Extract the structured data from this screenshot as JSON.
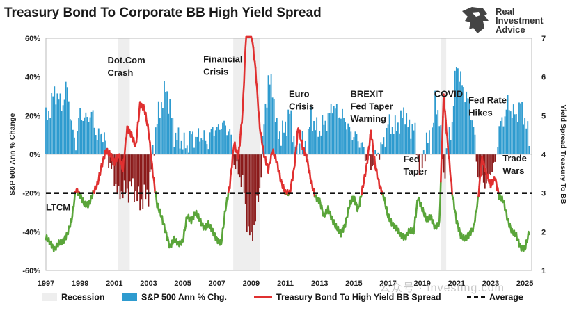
{
  "title": "Treasury Bond To Corporate BB High Yield Spread",
  "logo": {
    "line1": "Real",
    "line2": "Investment",
    "line3": "Advice"
  },
  "watermark": "公众号 · Investing.com",
  "colors": {
    "recession": "#eeeeee",
    "sp500_positive": "#2e9bcf",
    "sp500_negative": "#8b1a1a",
    "spread_above_avg": "#e03030",
    "spread_below_avg": "#5aa53a",
    "average": "#111111"
  },
  "chart_data": {
    "type": "bar+line",
    "title": "Treasury Bond To Corporate BB High Yield Spread",
    "y_left_label": "S&P 500 Ann % Change",
    "y_left_lim": [
      -60,
      60
    ],
    "y_left_ticks": [
      "-60%",
      "-40%",
      "-20%",
      "0%",
      "20%",
      "40%",
      "60%"
    ],
    "y_right_label": "Yield Spread Treasury To BB",
    "y_right_lim": [
      1,
      7
    ],
    "y_right_ticks": [
      "1",
      "2",
      "3",
      "4",
      "5",
      "6",
      "7"
    ],
    "x_lim": [
      1997,
      2025.4
    ],
    "x_tick_labels": [
      "1997",
      "1999",
      "2001",
      "2003",
      "2005",
      "2007",
      "2009",
      "2011",
      "2013",
      "2015",
      "2017",
      "2019",
      "2021",
      "2023",
      "2025"
    ],
    "average": 3.0,
    "recessions": [
      [
        2001.2,
        2001.9
      ],
      [
        2007.95,
        2009.5
      ],
      [
        2020.1,
        2020.4
      ]
    ],
    "sp500_annual_change": [
      [
        1997.0,
        18
      ],
      [
        1997.25,
        24
      ],
      [
        1997.5,
        33
      ],
      [
        1997.75,
        28
      ],
      [
        1998.0,
        26
      ],
      [
        1998.25,
        36
      ],
      [
        1998.5,
        14
      ],
      [
        1998.75,
        6
      ],
      [
        1999.0,
        22
      ],
      [
        1999.25,
        18
      ],
      [
        1999.5,
        20
      ],
      [
        1999.75,
        20
      ],
      [
        2000.0,
        8
      ],
      [
        2000.25,
        12
      ],
      [
        2000.5,
        6
      ],
      [
        2000.75,
        -6
      ],
      [
        2001.0,
        -12
      ],
      [
        2001.25,
        -22
      ],
      [
        2001.5,
        -18
      ],
      [
        2001.75,
        -20
      ],
      [
        2002.0,
        -16
      ],
      [
        2002.25,
        -20
      ],
      [
        2002.5,
        -25
      ],
      [
        2002.75,
        -22
      ],
      [
        2003.0,
        -20
      ],
      [
        2003.25,
        0
      ],
      [
        2003.5,
        18
      ],
      [
        2003.75,
        26
      ],
      [
        2004.0,
        34
      ],
      [
        2004.25,
        24
      ],
      [
        2004.5,
        10
      ],
      [
        2004.75,
        8
      ],
      [
        2005.0,
        6
      ],
      [
        2005.25,
        4
      ],
      [
        2005.5,
        10
      ],
      [
        2005.75,
        8
      ],
      [
        2006.0,
        10
      ],
      [
        2006.25,
        8
      ],
      [
        2006.5,
        6
      ],
      [
        2006.75,
        14
      ],
      [
        2007.0,
        12
      ],
      [
        2007.25,
        16
      ],
      [
        2007.5,
        14
      ],
      [
        2007.75,
        12
      ],
      [
        2008.0,
        -4
      ],
      [
        2008.25,
        -10
      ],
      [
        2008.5,
        -14
      ],
      [
        2008.75,
        -35
      ],
      [
        2009.0,
        -45
      ],
      [
        2009.25,
        -32
      ],
      [
        2009.5,
        -18
      ],
      [
        2009.75,
        16
      ],
      [
        2010.0,
        38
      ],
      [
        2010.25,
        35
      ],
      [
        2010.5,
        12
      ],
      [
        2010.75,
        10
      ],
      [
        2011.0,
        14
      ],
      [
        2011.25,
        22
      ],
      [
        2011.5,
        8
      ],
      [
        2011.75,
        4
      ],
      [
        2012.0,
        6
      ],
      [
        2012.25,
        4
      ],
      [
        2012.5,
        20
      ],
      [
        2012.75,
        14
      ],
      [
        2013.0,
        12
      ],
      [
        2013.25,
        16
      ],
      [
        2013.5,
        18
      ],
      [
        2013.75,
        26
      ],
      [
        2014.0,
        22
      ],
      [
        2014.25,
        20
      ],
      [
        2014.5,
        18
      ],
      [
        2014.75,
        12
      ],
      [
        2015.0,
        10
      ],
      [
        2015.25,
        8
      ],
      [
        2015.5,
        4
      ],
      [
        2015.75,
        -2
      ],
      [
        2016.0,
        -6
      ],
      [
        2016.25,
        -2
      ],
      [
        2016.5,
        2
      ],
      [
        2016.75,
        6
      ],
      [
        2017.0,
        16
      ],
      [
        2017.25,
        14
      ],
      [
        2017.5,
        14
      ],
      [
        2017.75,
        18
      ],
      [
        2018.0,
        22
      ],
      [
        2018.25,
        12
      ],
      [
        2018.5,
        16
      ],
      [
        2018.75,
        -4
      ],
      [
        2019.0,
        -6
      ],
      [
        2019.25,
        8
      ],
      [
        2019.5,
        6
      ],
      [
        2019.75,
        26
      ],
      [
        2020.0,
        20
      ],
      [
        2020.25,
        -12
      ],
      [
        2020.5,
        6
      ],
      [
        2020.75,
        16
      ],
      [
        2021.0,
        48
      ],
      [
        2021.25,
        38
      ],
      [
        2021.5,
        32
      ],
      [
        2021.75,
        26
      ],
      [
        2022.0,
        14
      ],
      [
        2022.25,
        -10
      ],
      [
        2022.5,
        -12
      ],
      [
        2022.75,
        -16
      ],
      [
        2023.0,
        -8
      ],
      [
        2023.25,
        -6
      ],
      [
        2023.5,
        14
      ],
      [
        2023.75,
        18
      ],
      [
        2024.0,
        26
      ],
      [
        2024.25,
        22
      ],
      [
        2024.5,
        20
      ],
      [
        2024.75,
        26
      ],
      [
        2025.0,
        18
      ],
      [
        2025.25,
        8
      ]
    ],
    "yield_spread": [
      [
        1997.0,
        1.85
      ],
      [
        1997.25,
        1.72
      ],
      [
        1997.5,
        1.55
      ],
      [
        1997.75,
        1.7
      ],
      [
        1998.0,
        1.75
      ],
      [
        1998.25,
        1.95
      ],
      [
        1998.5,
        2.3
      ],
      [
        1998.75,
        3.1
      ],
      [
        1999.0,
        2.95
      ],
      [
        1999.25,
        2.7
      ],
      [
        1999.5,
        2.7
      ],
      [
        1999.75,
        3.0
      ],
      [
        2000.0,
        3.2
      ],
      [
        2000.25,
        3.7
      ],
      [
        2000.5,
        4.1
      ],
      [
        2000.75,
        4.0
      ],
      [
        2001.0,
        3.8
      ],
      [
        2001.25,
        4.0
      ],
      [
        2001.5,
        3.6
      ],
      [
        2001.75,
        4.7
      ],
      [
        2002.0,
        4.5
      ],
      [
        2002.25,
        4.2
      ],
      [
        2002.5,
        5.3
      ],
      [
        2002.75,
        5.2
      ],
      [
        2003.0,
        4.6
      ],
      [
        2003.25,
        3.5
      ],
      [
        2003.5,
        2.7
      ],
      [
        2003.75,
        2.4
      ],
      [
        2004.0,
        2.0
      ],
      [
        2004.25,
        1.6
      ],
      [
        2004.5,
        1.8
      ],
      [
        2004.75,
        1.7
      ],
      [
        2005.0,
        1.75
      ],
      [
        2005.25,
        2.4
      ],
      [
        2005.5,
        2.3
      ],
      [
        2005.75,
        2.5
      ],
      [
        2006.0,
        2.3
      ],
      [
        2006.25,
        2.1
      ],
      [
        2006.5,
        2.2
      ],
      [
        2006.75,
        2.0
      ],
      [
        2007.0,
        1.8
      ],
      [
        2007.25,
        1.7
      ],
      [
        2007.5,
        2.6
      ],
      [
        2007.75,
        3.2
      ],
      [
        2008.0,
        4.3
      ],
      [
        2008.25,
        3.9
      ],
      [
        2008.5,
        5.1
      ],
      [
        2008.75,
        7.6
      ],
      [
        2009.0,
        7.2
      ],
      [
        2009.25,
        6.2
      ],
      [
        2009.5,
        4.7
      ],
      [
        2009.75,
        4.0
      ],
      [
        2010.0,
        3.6
      ],
      [
        2010.25,
        4.1
      ],
      [
        2010.5,
        3.8
      ],
      [
        2010.75,
        3.3
      ],
      [
        2011.0,
        3.0
      ],
      [
        2011.25,
        3.0
      ],
      [
        2011.5,
        3.6
      ],
      [
        2011.75,
        4.7
      ],
      [
        2012.0,
        4.2
      ],
      [
        2012.25,
        3.9
      ],
      [
        2012.5,
        3.3
      ],
      [
        2012.75,
        2.9
      ],
      [
        2013.0,
        2.8
      ],
      [
        2013.25,
        2.4
      ],
      [
        2013.5,
        2.6
      ],
      [
        2013.75,
        2.3
      ],
      [
        2014.0,
        2.1
      ],
      [
        2014.25,
        1.95
      ],
      [
        2014.5,
        2.2
      ],
      [
        2014.75,
        2.7
      ],
      [
        2015.0,
        2.9
      ],
      [
        2015.25,
        2.55
      ],
      [
        2015.5,
        3.1
      ],
      [
        2015.75,
        3.7
      ],
      [
        2016.0,
        4.6
      ],
      [
        2016.25,
        3.7
      ],
      [
        2016.5,
        3.2
      ],
      [
        2016.75,
        2.9
      ],
      [
        2017.0,
        2.4
      ],
      [
        2017.25,
        2.2
      ],
      [
        2017.5,
        2.1
      ],
      [
        2017.75,
        1.9
      ],
      [
        2018.0,
        1.85
      ],
      [
        2018.25,
        2.05
      ],
      [
        2018.5,
        2.0
      ],
      [
        2018.75,
        2.9
      ],
      [
        2019.0,
        2.6
      ],
      [
        2019.25,
        2.3
      ],
      [
        2019.5,
        2.4
      ],
      [
        2019.75,
        2.1
      ],
      [
        2020.0,
        2.2
      ],
      [
        2020.25,
        5.5
      ],
      [
        2020.5,
        4.2
      ],
      [
        2020.75,
        3.0
      ],
      [
        2021.0,
        2.3
      ],
      [
        2021.25,
        1.9
      ],
      [
        2021.5,
        1.8
      ],
      [
        2021.75,
        1.95
      ],
      [
        2022.0,
        2.1
      ],
      [
        2022.25,
        2.8
      ],
      [
        2022.5,
        3.9
      ],
      [
        2022.75,
        3.5
      ],
      [
        2023.0,
        3.2
      ],
      [
        2023.25,
        3.4
      ],
      [
        2023.5,
        2.9
      ],
      [
        2023.75,
        2.8
      ],
      [
        2024.0,
        2.3
      ],
      [
        2024.25,
        2.0
      ],
      [
        2024.5,
        1.9
      ],
      [
        2024.75,
        1.6
      ],
      [
        2025.0,
        1.55
      ],
      [
        2025.25,
        2.0
      ]
    ],
    "annotations": [
      {
        "text": "LTCM",
        "x": 1997.0,
        "y": 2.55
      },
      {
        "text": "Dot.Com",
        "x": 2000.6,
        "y": 6.35
      },
      {
        "text": "Crash",
        "x": 2000.6,
        "y": 6.03
      },
      {
        "text": "Financial",
        "x": 2006.2,
        "y": 6.38
      },
      {
        "text": "Crisis",
        "x": 2006.2,
        "y": 6.06
      },
      {
        "text": "Euro",
        "x": 2011.2,
        "y": 5.48
      },
      {
        "text": "Crisis",
        "x": 2011.2,
        "y": 5.16
      },
      {
        "text": "BREXIT",
        "x": 2014.8,
        "y": 5.48
      },
      {
        "text": "Fed Taper",
        "x": 2014.8,
        "y": 5.16
      },
      {
        "text": "Warning",
        "x": 2014.8,
        "y": 4.84
      },
      {
        "text": "Fed",
        "x": 2017.9,
        "y": 3.8
      },
      {
        "text": "Taper",
        "x": 2017.9,
        "y": 3.48
      },
      {
        "text": "COVID",
        "x": 2019.7,
        "y": 5.48
      },
      {
        "text": "Fed Rate",
        "x": 2021.7,
        "y": 5.32
      },
      {
        "text": "Hikes",
        "x": 2021.7,
        "y": 5.0
      },
      {
        "text": "Trade",
        "x": 2023.7,
        "y": 3.82
      },
      {
        "text": "Wars",
        "x": 2023.7,
        "y": 3.5
      }
    ],
    "legend": [
      {
        "label": "Recession",
        "kind": "box",
        "color": "#eeeeee"
      },
      {
        "label": "S&P 500 Ann % Chg.",
        "kind": "box",
        "color": "#2e9bcf"
      },
      {
        "label": "Treasury Bond To High Yield BB Spread",
        "kind": "line",
        "color": "#e03030"
      },
      {
        "label": "Average",
        "kind": "dash",
        "color": "#111111"
      }
    ]
  }
}
